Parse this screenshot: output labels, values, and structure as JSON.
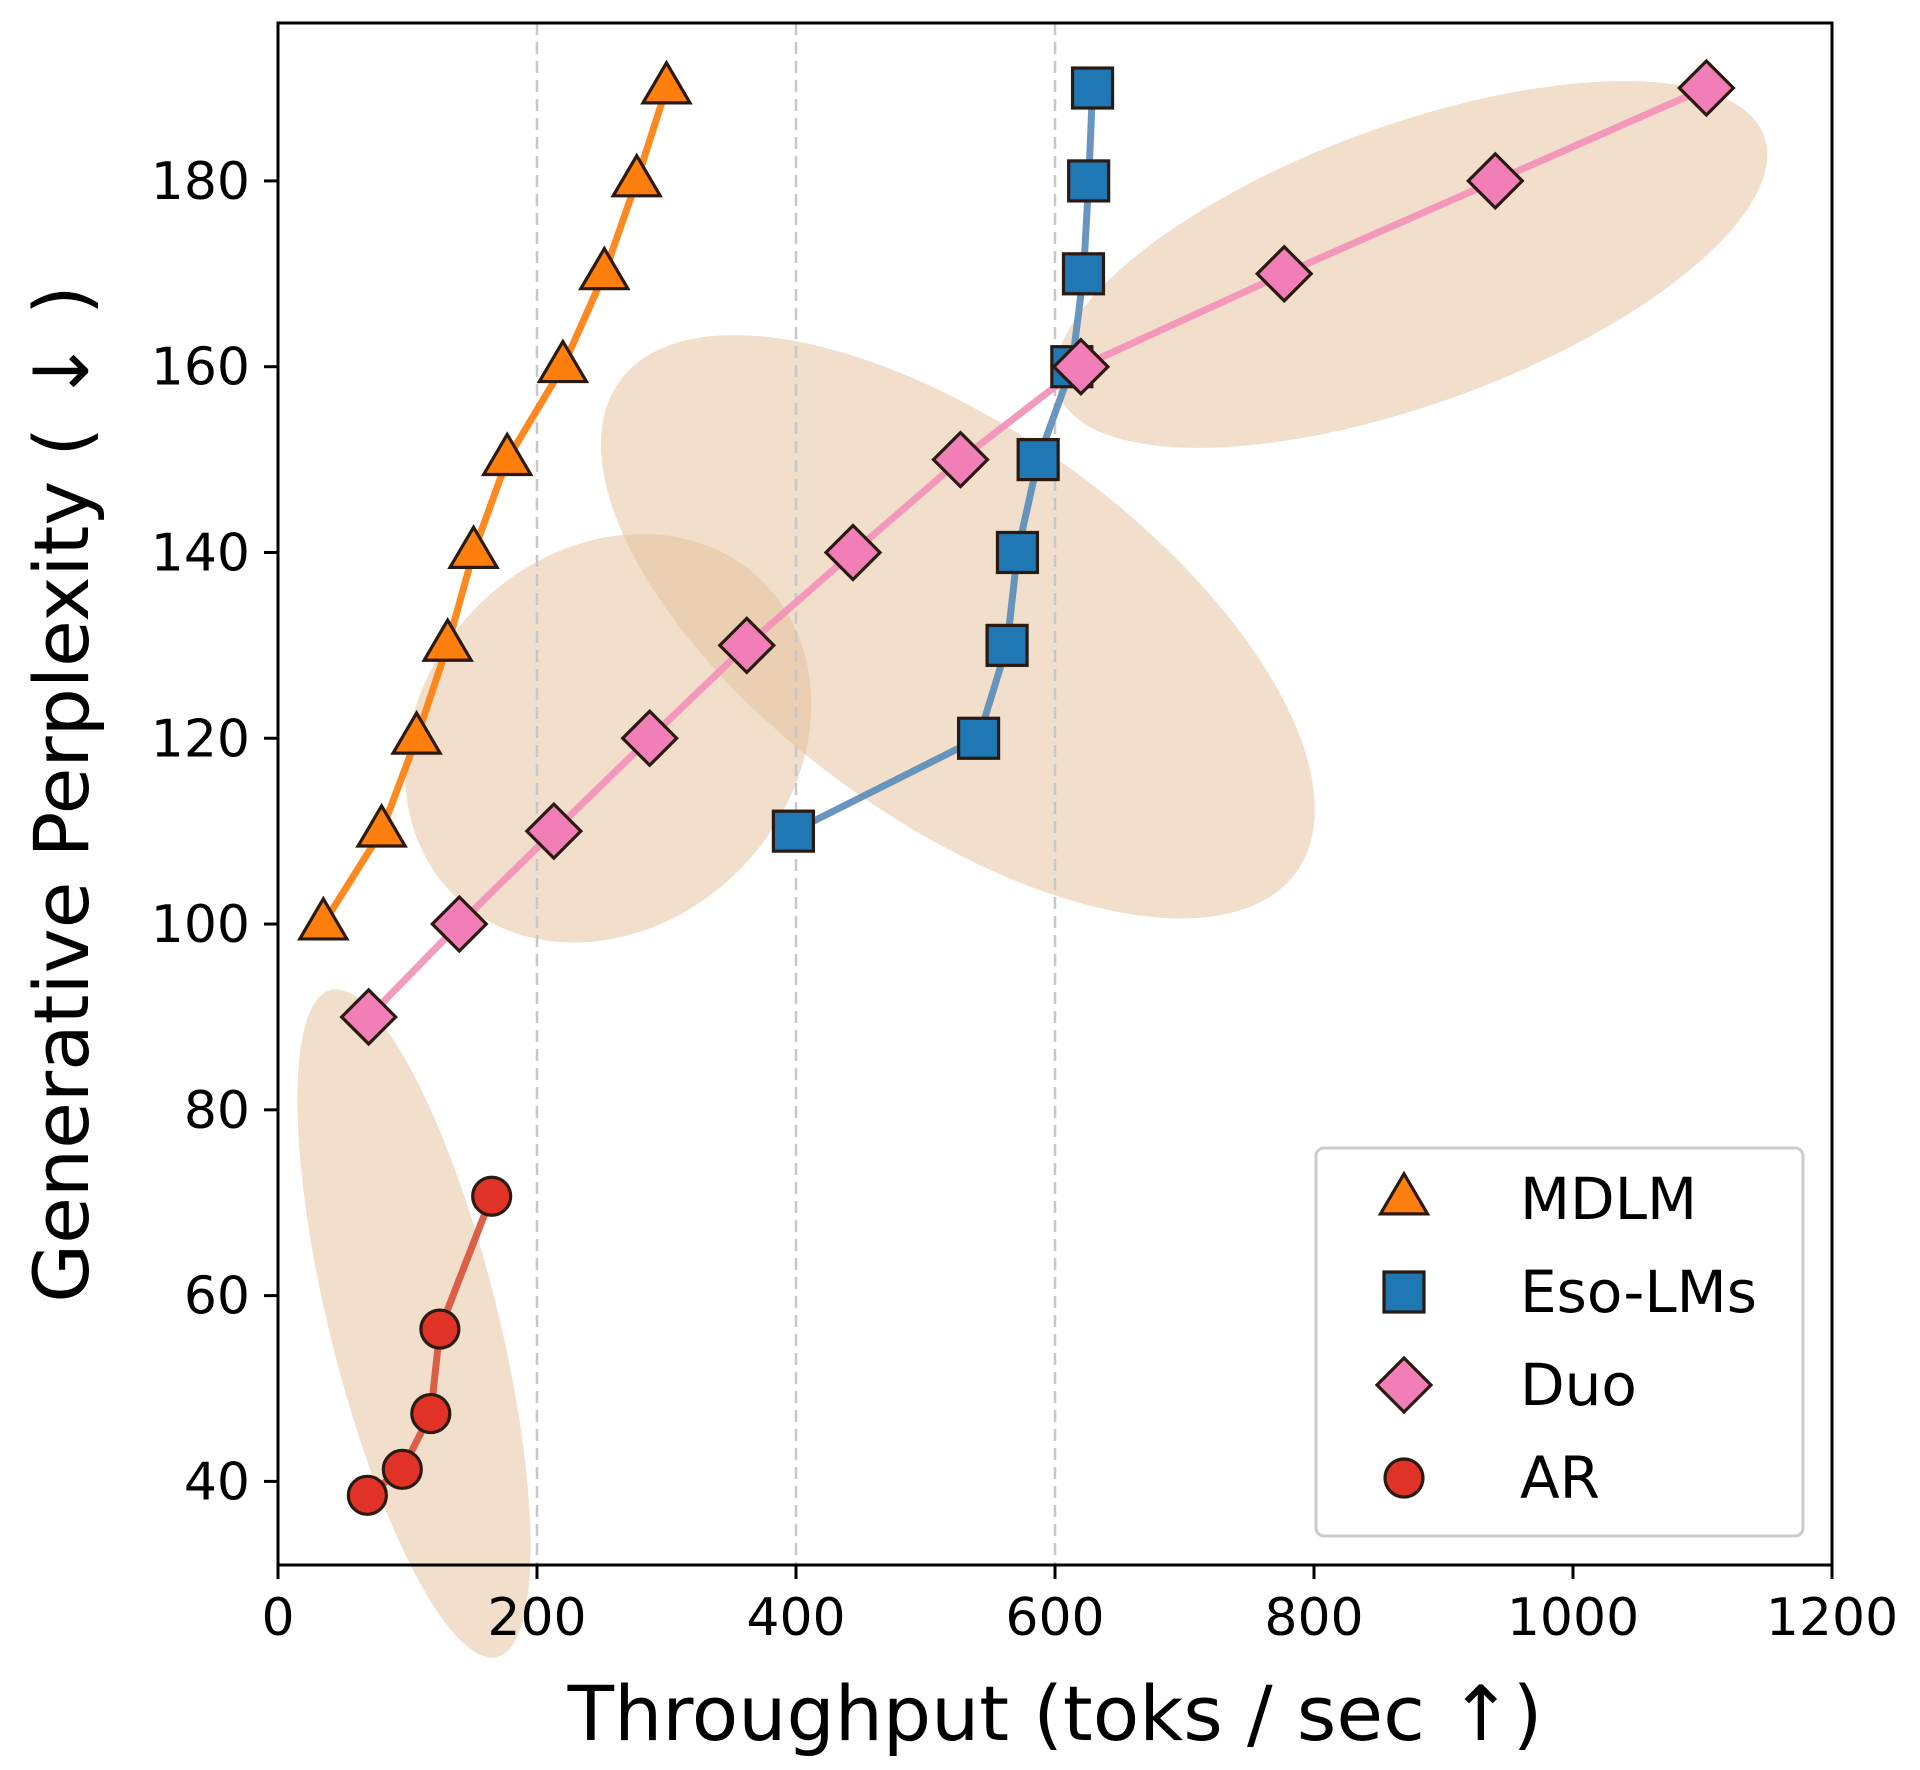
{
  "chart_data": {
    "type": "line",
    "title": "",
    "xlabel": "Throughput (toks / sec ↑)",
    "ylabel": "Generative Perplexity ( ↓ )",
    "xlim": [
      0,
      1200
    ],
    "ylim": [
      31,
      197
    ],
    "xticks": [
      0,
      200,
      400,
      600,
      800,
      1000,
      1200
    ],
    "yticks": [
      40,
      60,
      80,
      100,
      120,
      140,
      160,
      180
    ],
    "xtick_labels": [
      "0",
      "200",
      "400",
      "600",
      "800",
      "1000",
      "1200"
    ],
    "ytick_labels": [
      "40",
      "60",
      "80",
      "100",
      "120",
      "140",
      "160",
      "180"
    ],
    "vertical_reference_lines": [
      200,
      400,
      600
    ],
    "grid": false,
    "legend_position": "lower-right",
    "series": [
      {
        "name": "MDLM",
        "marker": "triangle",
        "color": "#ff7f0e",
        "line_color": "#ff7f0e",
        "x": [
          35,
          80,
          107,
          131,
          151,
          177,
          220,
          252,
          277,
          300
        ],
        "y": [
          100,
          110,
          120,
          130,
          140,
          150,
          160,
          170,
          180,
          190
        ]
      },
      {
        "name": "Eso-LMs",
        "marker": "square",
        "color": "#1f77b4",
        "line_color": "#5b8db8",
        "x": [
          398,
          541,
          563,
          571,
          587,
          613,
          622,
          626,
          629
        ],
        "y": [
          110,
          120,
          130,
          140,
          150,
          160,
          170,
          180,
          190
        ]
      },
      {
        "name": "Duo",
        "marker": "diamond",
        "color": "#f27eb8",
        "line_color": "#f391b8",
        "x": [
          70,
          140,
          213,
          287,
          362,
          444,
          527,
          620,
          777,
          940,
          1103
        ],
        "y": [
          90,
          100,
          110,
          120,
          130,
          140,
          150,
          160,
          170,
          180,
          190
        ]
      },
      {
        "name": "AR",
        "marker": "circle",
        "color": "#e03226",
        "line_color": "#d9533c",
        "x": [
          69,
          96,
          118,
          125,
          165
        ],
        "y": [
          38.5,
          41.3,
          47.3,
          56.4,
          70.7
        ]
      }
    ],
    "highlight_regions": [
      {
        "center": [
          105,
          57
        ],
        "rx": 65,
        "ry": 37,
        "angle_deg": 14
      },
      {
        "center": [
          255,
          120
        ],
        "rx": 170,
        "ry": 20,
        "angle_deg": 46
      },
      {
        "center": [
          525,
          132
        ],
        "rx": 150,
        "ry": 45,
        "angle_deg": 54
      },
      {
        "center": [
          875,
          171
        ],
        "rx": 290,
        "ry": 15,
        "angle_deg": 20
      }
    ]
  }
}
